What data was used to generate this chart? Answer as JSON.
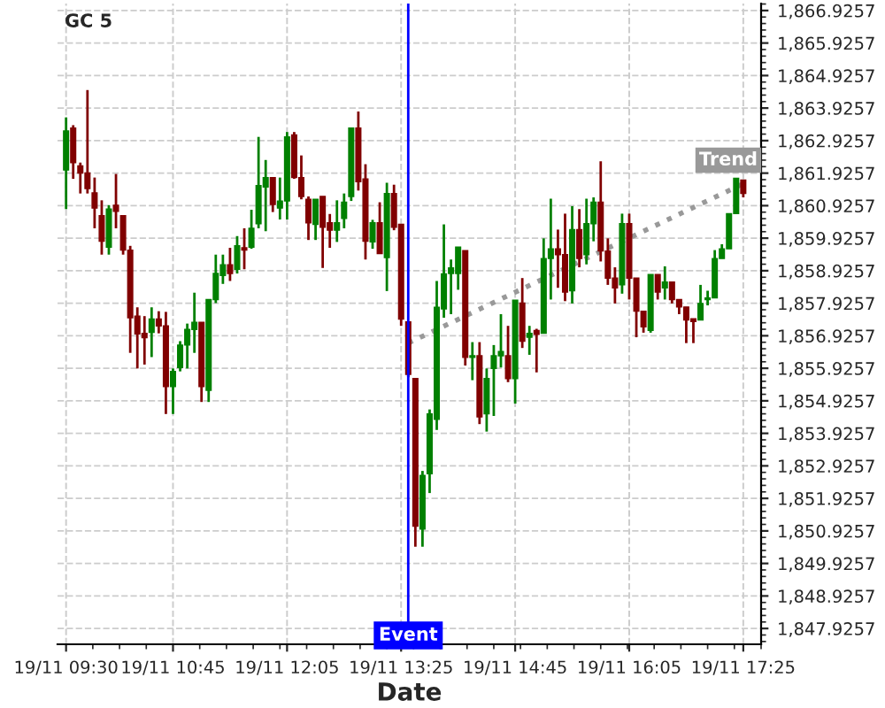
{
  "chart_data": {
    "type": "candlestick",
    "title": "GC 5",
    "xlabel": "Date",
    "categories": [
      "19/11 09:30",
      null,
      null,
      null,
      null,
      null,
      null,
      null,
      null,
      null,
      null,
      null,
      null,
      null,
      null,
      "19/11 10:45",
      null,
      null,
      null,
      null,
      null,
      null,
      null,
      null,
      null,
      null,
      null,
      null,
      null,
      null,
      null,
      "19/11 12:05",
      null,
      null,
      null,
      null,
      null,
      null,
      null,
      null,
      null,
      null,
      null,
      null,
      null,
      null,
      null,
      "19/11 13:25",
      null,
      null,
      null,
      null,
      null,
      null,
      null,
      null,
      null,
      null,
      null,
      null,
      null,
      null,
      null,
      "19/11 14:45",
      null,
      null,
      null,
      null,
      null,
      null,
      null,
      null,
      null,
      null,
      null,
      null,
      null,
      null,
      null,
      "19/11 16:05",
      null,
      null,
      null,
      null,
      null,
      null,
      null,
      null,
      null,
      null,
      null,
      null,
      null,
      null,
      null,
      "19/11 17:25"
    ],
    "ohlc": [
      [
        1862.02,
        1863.64,
        1860.82,
        1863.22
      ],
      [
        1863.31,
        1863.4,
        1861.75,
        1862.25
      ],
      [
        1862.15,
        1862.25,
        1861.3,
        1861.93
      ],
      [
        1861.93,
        1864.48,
        1861.3,
        1861.45
      ],
      [
        1861.32,
        1861.79,
        1860.23,
        1860.85
      ],
      [
        1860.62,
        1861.09,
        1859.42,
        1859.83
      ],
      [
        1859.65,
        1860.94,
        1859.42,
        1860.82
      ],
      [
        1860.94,
        1861.9,
        1860.23,
        1860.75
      ],
      [
        1860.62,
        1860.62,
        1859.42,
        1859.56
      ],
      [
        1859.56,
        1859.69,
        1856.4,
        1857.48
      ],
      [
        1857.53,
        1857.8,
        1855.92,
        1856.98
      ],
      [
        1857.0,
        1857.53,
        1856.04,
        1856.87
      ],
      [
        1857.03,
        1857.8,
        1856.27,
        1857.44
      ],
      [
        1857.44,
        1857.68,
        1857.0,
        1857.23
      ],
      [
        1857.23,
        1857.66,
        1854.52,
        1855.36
      ],
      [
        1855.36,
        1855.92,
        1854.52,
        1855.83
      ],
      [
        1855.95,
        1856.76,
        1855.83,
        1856.64
      ],
      [
        1856.64,
        1857.3,
        1855.92,
        1857.12
      ],
      [
        1857.12,
        1858.25,
        1856.4,
        1857.34
      ],
      [
        1857.34,
        1857.34,
        1854.89,
        1855.36
      ],
      [
        1855.25,
        1858.04,
        1854.89,
        1858.04
      ],
      [
        1858.04,
        1859.42,
        1857.93,
        1858.84
      ],
      [
        1858.78,
        1859.42,
        1858.52,
        1859.11
      ],
      [
        1859.11,
        1859.63,
        1858.61,
        1858.84
      ],
      [
        1858.97,
        1859.99,
        1858.84,
        1859.69
      ],
      [
        1859.63,
        1860.23,
        1858.97,
        1859.56
      ],
      [
        1859.65,
        1860.8,
        1859.6,
        1860.23
      ],
      [
        1860.37,
        1863.04,
        1860.23,
        1861.54
      ],
      [
        1861.5,
        1862.33,
        1860.14,
        1861.79
      ],
      [
        1861.79,
        1861.79,
        1860.73,
        1860.96
      ],
      [
        1860.85,
        1861.79,
        1860.5,
        1861.07
      ],
      [
        1861.07,
        1863.19,
        1860.5,
        1863.04
      ],
      [
        1863.1,
        1863.19,
        1861.75,
        1861.79
      ],
      [
        1861.79,
        1862.47,
        1861.12,
        1861.21
      ],
      [
        1861.12,
        1861.21,
        1859.87,
        1860.4
      ],
      [
        1860.35,
        1861.12,
        1859.87,
        1861.12
      ],
      [
        1861.21,
        1861.21,
        1859.01,
        1860.26
      ],
      [
        1860.4,
        1860.67,
        1859.63,
        1860.17
      ],
      [
        1860.17,
        1861.09,
        1859.81,
        1860.4
      ],
      [
        1860.53,
        1861.3,
        1860.23,
        1861.03
      ],
      [
        1861.21,
        1863.31,
        1861.07,
        1863.31
      ],
      [
        1863.31,
        1863.82,
        1861.39,
        1861.66
      ],
      [
        1861.75,
        1862.2,
        1859.27,
        1859.83
      ],
      [
        1859.81,
        1860.49,
        1859.6,
        1860.4
      ],
      [
        1860.4,
        1861.03,
        1859.45,
        1859.45
      ],
      [
        1859.33,
        1861.63,
        1858.3,
        1861.3
      ],
      [
        1861.3,
        1861.57,
        1860.17,
        1860.26
      ],
      [
        1860.35,
        1860.35,
        1857.23,
        1857.44
      ],
      [
        1857.35,
        1857.35,
        1855.65,
        1855.74
      ],
      [
        1855.61,
        1855.61,
        1850.44,
        1851.07
      ],
      [
        1850.98,
        1852.77,
        1850.44,
        1852.63
      ],
      [
        1852.68,
        1854.66,
        1852.09,
        1854.52
      ],
      [
        1854.36,
        1858.61,
        1854.03,
        1857.8
      ],
      [
        1857.75,
        1860.35,
        1857.48,
        1858.83
      ],
      [
        1858.84,
        1859.27,
        1857.59,
        1859.01
      ],
      [
        1858.84,
        1859.65,
        1858.34,
        1859.65
      ],
      [
        1859.54,
        1859.54,
        1856.01,
        1856.26
      ],
      [
        1856.26,
        1856.73,
        1855.56,
        1856.31
      ],
      [
        1856.31,
        1856.73,
        1854.21,
        1854.43
      ],
      [
        1854.53,
        1855.92,
        1853.98,
        1855.61
      ],
      [
        1855.92,
        1856.64,
        1854.46,
        1856.31
      ],
      [
        1856.31,
        1857.59,
        1855.95,
        1856.44
      ],
      [
        1856.31,
        1857.23,
        1855.5,
        1855.61
      ],
      [
        1855.61,
        1858.02,
        1854.84,
        1858.02
      ],
      [
        1857.93,
        1858.7,
        1856.55,
        1856.76
      ],
      [
        1856.88,
        1857.23,
        1856.34,
        1857.0
      ],
      [
        1857.09,
        1857.14,
        1855.8,
        1856.97
      ],
      [
        1857.0,
        1859.92,
        1857.0,
        1859.3
      ],
      [
        1859.3,
        1861.14,
        1858.04,
        1859.6
      ],
      [
        1859.6,
        1860.19,
        1858.4,
        1859.42
      ],
      [
        1859.42,
        1860.68,
        1857.99,
        1858.27
      ],
      [
        1858.31,
        1860.91,
        1857.92,
        1860.19
      ],
      [
        1860.19,
        1860.82,
        1859.03,
        1859.3
      ],
      [
        1859.42,
        1861.14,
        1859.12,
        1860.37
      ],
      [
        1860.37,
        1861.18,
        1859.83,
        1861.03
      ],
      [
        1861.03,
        1862.29,
        1859.21,
        1859.53
      ],
      [
        1859.53,
        1859.92,
        1858.49,
        1858.7
      ],
      [
        1858.7,
        1859.03,
        1857.92,
        1858.4
      ],
      [
        1858.49,
        1860.68,
        1858.22,
        1860.37
      ],
      [
        1860.37,
        1860.68,
        1858.04,
        1858.7
      ],
      [
        1858.7,
        1858.7,
        1856.88,
        1857.68
      ],
      [
        1857.68,
        1857.68,
        1857.02,
        1857.2
      ],
      [
        1857.09,
        1858.81,
        1857.02,
        1858.81
      ],
      [
        1858.81,
        1858.81,
        1858.04,
        1858.27
      ],
      [
        1858.4,
        1859.06,
        1858.04,
        1858.58
      ],
      [
        1858.58,
        1858.58,
        1857.92,
        1858.04
      ],
      [
        1858.04,
        1858.04,
        1857.59,
        1857.81
      ],
      [
        1857.81,
        1857.81,
        1856.7,
        1857.41
      ],
      [
        1857.45,
        1857.45,
        1856.7,
        1857.36
      ],
      [
        1857.41,
        1858.49,
        1857.41,
        1857.92
      ],
      [
        1858.04,
        1858.31,
        1857.86,
        1858.09
      ],
      [
        1858.09,
        1859.56,
        1858.09,
        1859.3
      ],
      [
        1859.3,
        1859.74,
        1859.3,
        1859.6
      ],
      [
        1859.6,
        1860.68,
        1859.6,
        1860.68
      ],
      [
        1860.68,
        1861.77,
        1860.68,
        1861.77
      ],
      [
        1861.71,
        1861.71,
        1861.18,
        1861.3
      ]
    ],
    "colors": [
      "#008000",
      "#800000",
      "#800000",
      "#800000",
      "#800000",
      "#800000",
      "#008000",
      "#800000",
      "#800000",
      "#800000",
      "#800000",
      "#800000",
      "#008000",
      "#800000",
      "#800000",
      "#008000",
      "#008000",
      "#008000",
      "#008000",
      "#800000",
      "#008000",
      "#008000",
      "#008000",
      "#800000",
      "#008000",
      "#800000",
      "#008000",
      "#008000",
      "#008000",
      "#800000",
      "#008000",
      "#008000",
      "#800000",
      "#800000",
      "#800000",
      "#008000",
      "#800000",
      "#800000",
      "#008000",
      "#008000",
      "#008000",
      "#800000",
      "#800000",
      "#008000",
      "#800000",
      "#008000",
      "#800000",
      "#800000",
      "#800000",
      "#800000",
      "#008000",
      "#008000",
      "#008000",
      "#008000",
      "#008000",
      "#008000",
      "#800000",
      "#008000",
      "#800000",
      "#008000",
      "#008000",
      "#008000",
      "#800000",
      "#008000",
      "#800000",
      "#008000",
      "#800000",
      "#008000",
      "#008000",
      "#800000",
      "#800000",
      "#008000",
      "#800000",
      "#008000",
      "#008000",
      "#800000",
      "#800000",
      "#800000",
      "#008000",
      "#800000",
      "#800000",
      "#800000",
      "#008000",
      "#800000",
      "#008000",
      "#800000",
      "#800000",
      "#800000",
      "#800000",
      "#008000",
      "#008000",
      "#008000",
      "#008000",
      "#008000",
      "#008000",
      "#800000"
    ],
    "series": [
      {
        "type": "line",
        "name": "Trend",
        "color": "#999999",
        "line_style": "dotted",
        "values": [
          null,
          null,
          null,
          null,
          null,
          null,
          null,
          null,
          null,
          null,
          null,
          null,
          null,
          null,
          null,
          null,
          null,
          null,
          null,
          null,
          null,
          null,
          null,
          null,
          null,
          null,
          null,
          null,
          null,
          null,
          null,
          null,
          null,
          null,
          null,
          null,
          null,
          null,
          null,
          null,
          null,
          null,
          null,
          null,
          null,
          null,
          null,
          null,
          1856.7,
          null,
          null,
          null,
          null,
          null,
          null,
          null,
          null,
          null,
          null,
          null,
          null,
          null,
          null,
          null,
          null,
          null,
          null,
          null,
          null,
          null,
          null,
          null,
          null,
          null,
          null,
          null,
          null,
          null,
          null,
          null,
          null,
          null,
          null,
          null,
          null,
          null,
          null,
          null,
          null,
          null,
          null,
          null,
          null,
          null,
          null,
          1861.6
        ]
      }
    ],
    "annotations": [
      "Event"
    ],
    "ylim": [
      1847.44,
      1867.14
    ],
    "yticks": [
      {
        "value": 1847.9257,
        "label": "1,847.9257"
      },
      {
        "value": 1848.9257,
        "label": "1,848.9257"
      },
      {
        "value": 1849.9257,
        "label": "1,849.9257"
      },
      {
        "value": 1850.9257,
        "label": "1,850.9257"
      },
      {
        "value": 1851.9257,
        "label": "1,851.9257"
      },
      {
        "value": 1852.9257,
        "label": "1,852.9257"
      },
      {
        "value": 1853.9257,
        "label": "1,853.9257"
      },
      {
        "value": 1854.9257,
        "label": "1,854.9257"
      },
      {
        "value": 1855.9257,
        "label": "1,855.9257"
      },
      {
        "value": 1856.9257,
        "label": "1,856.9257"
      },
      {
        "value": 1857.9257,
        "label": "1,857.9257"
      },
      {
        "value": 1858.9257,
        "label": "1,858.9257"
      },
      {
        "value": 1859.9257,
        "label": "1,859.9257"
      },
      {
        "value": 1860.9257,
        "label": "1,860.9257"
      },
      {
        "value": 1861.9257,
        "label": "1,861.9257"
      },
      {
        "value": 1862.9257,
        "label": "1,862.9257"
      },
      {
        "value": 1863.9257,
        "label": "1,863.9257"
      },
      {
        "value": 1864.9257,
        "label": "1,864.9257"
      },
      {
        "value": 1865.9257,
        "label": "1,865.9257"
      },
      {
        "value": 1866.9257,
        "label": "1,866.9257"
      }
    ],
    "grid": true,
    "legend": false
  }
}
